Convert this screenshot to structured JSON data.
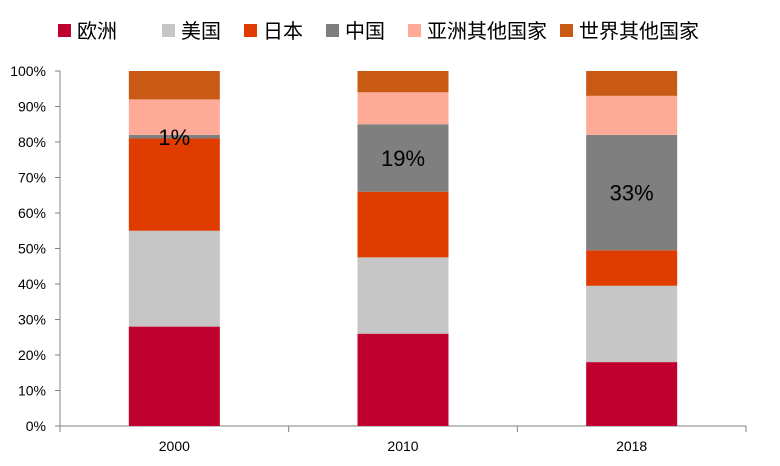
{
  "chart_data": {
    "type": "bar",
    "stacked": true,
    "normalized": true,
    "categories": [
      "2000",
      "2010",
      "2018"
    ],
    "ylim": [
      0,
      100
    ],
    "yticks": [
      "0%",
      "10%",
      "20%",
      "30%",
      "40%",
      "50%",
      "60%",
      "70%",
      "80%",
      "90%",
      "100%"
    ],
    "legend_position": "top",
    "grid": false,
    "series": [
      {
        "name": "欧洲",
        "color": "#c0002e",
        "values": [
          28,
          26,
          18
        ]
      },
      {
        "name": "美国",
        "color": "#c6c6c6",
        "values": [
          27,
          21.5,
          21.5
        ]
      },
      {
        "name": "日本",
        "color": "#e03c00",
        "values": [
          26,
          18.5,
          10
        ]
      },
      {
        "name": "中国",
        "color": "#7f7f7f",
        "values": [
          1,
          19,
          32.5
        ]
      },
      {
        "name": "亚洲其他国家",
        "color": "#ffaa96",
        "values": [
          10,
          9,
          11
        ]
      },
      {
        "name": "世界其他国家",
        "color": "#c85a14",
        "values": [
          8,
          6,
          7
        ]
      }
    ],
    "annotations": [
      {
        "category": "2000",
        "series": "中国",
        "text": "1%"
      },
      {
        "category": "2010",
        "series": "中国",
        "text": "19%"
      },
      {
        "category": "2018",
        "series": "中国",
        "text": "33%"
      }
    ]
  }
}
